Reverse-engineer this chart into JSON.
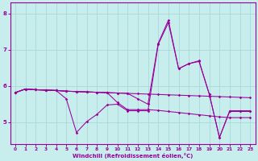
{
  "xlabel": "Windchill (Refroidissement éolien,°C)",
  "xlim": [
    -0.5,
    23.5
  ],
  "ylim": [
    4.4,
    8.3
  ],
  "yticks": [
    5,
    6,
    7,
    8
  ],
  "xticks": [
    0,
    1,
    2,
    3,
    4,
    5,
    6,
    7,
    8,
    9,
    10,
    11,
    12,
    13,
    14,
    15,
    16,
    17,
    18,
    19,
    20,
    21,
    22,
    23
  ],
  "background_color": "#c8eded",
  "grid_color": "#aad8d8",
  "line_color": "#990099",
  "series": {
    "line1_x": [
      0,
      1,
      2,
      3,
      4,
      5,
      6,
      7,
      8,
      9,
      10,
      11,
      12,
      13,
      14,
      15,
      16,
      17,
      18,
      19,
      20,
      21,
      22,
      23
    ],
    "line1_y": [
      5.82,
      5.92,
      5.9,
      5.89,
      5.88,
      5.86,
      5.85,
      5.84,
      5.83,
      5.82,
      5.81,
      5.8,
      5.79,
      5.78,
      5.77,
      5.76,
      5.75,
      5.74,
      5.73,
      5.72,
      5.71,
      5.7,
      5.69,
      5.68
    ],
    "line2_x": [
      0,
      1,
      2,
      3,
      4,
      5,
      6,
      7,
      8,
      9,
      10,
      11,
      12,
      13,
      14,
      15,
      16,
      17,
      18,
      19,
      20,
      21,
      22,
      23
    ],
    "line2_y": [
      5.82,
      5.92,
      5.9,
      5.89,
      5.88,
      5.65,
      4.72,
      5.02,
      5.22,
      5.48,
      5.5,
      5.32,
      5.32,
      5.32,
      7.15,
      7.75,
      6.48,
      6.62,
      6.7,
      5.78,
      4.58,
      5.32,
      5.32,
      5.32
    ],
    "line3_x": [
      0,
      1,
      2,
      3,
      4,
      5,
      6,
      7,
      8,
      9,
      10,
      11,
      12,
      13,
      14,
      15,
      16,
      17,
      18,
      19,
      20,
      21,
      22,
      23
    ],
    "line3_y": [
      5.82,
      5.92,
      5.9,
      5.89,
      5.88,
      5.86,
      5.85,
      5.84,
      5.83,
      5.82,
      5.55,
      5.35,
      5.35,
      5.35,
      5.33,
      5.3,
      5.27,
      5.24,
      5.21,
      5.18,
      5.15,
      5.13,
      5.13,
      5.13
    ],
    "line4_x": [
      0,
      1,
      2,
      3,
      4,
      5,
      6,
      7,
      8,
      9,
      10,
      11,
      12,
      13,
      14,
      15,
      16,
      17,
      18,
      19,
      20,
      21,
      22,
      23
    ],
    "line4_y": [
      5.82,
      5.92,
      5.9,
      5.89,
      5.88,
      5.86,
      5.85,
      5.84,
      5.83,
      5.82,
      5.81,
      5.8,
      5.65,
      5.5,
      7.18,
      7.82,
      6.48,
      6.62,
      6.68,
      5.78,
      4.58,
      5.3,
      5.3,
      5.3
    ]
  }
}
